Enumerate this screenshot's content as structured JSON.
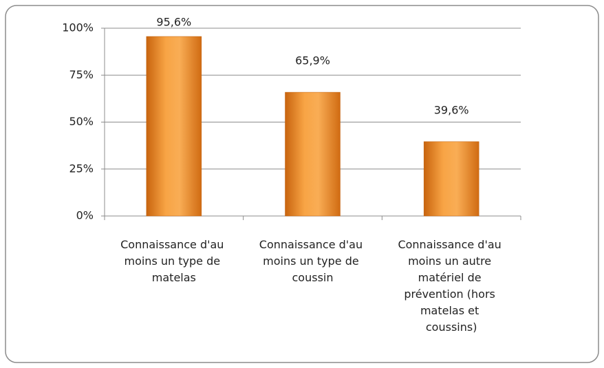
{
  "chart_data": {
    "type": "bar",
    "categories": [
      "Connaissance d'au moins un type de matelas",
      "Connaissance d'au moins un type de coussin",
      "Connaissance d'au moins un autre matériel de prévention (hors matelas et coussins)"
    ],
    "values": [
      95.6,
      65.9,
      39.6
    ],
    "value_labels": [
      "95,6%",
      "65,9%",
      "39,6%"
    ],
    "color": "#f39a30",
    "ylim": [
      0,
      100
    ],
    "yticks": [
      {
        "value": 0,
        "label": "0%"
      },
      {
        "value": 25,
        "label": "25%"
      },
      {
        "value": 50,
        "label": "50%"
      },
      {
        "value": 75,
        "label": "75%"
      },
      {
        "value": 100,
        "label": "100%"
      }
    ],
    "grid": true
  }
}
